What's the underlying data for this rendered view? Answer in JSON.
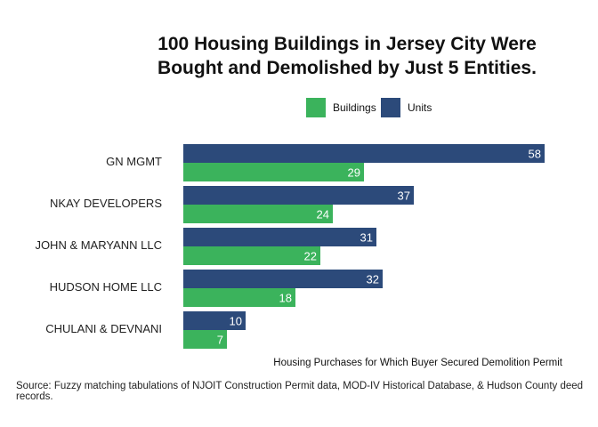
{
  "chart_data": {
    "type": "bar",
    "orientation": "horizontal",
    "title": [
      "100 Housing Buildings in Jersey City Were",
      "Bought and Demolished by Just 5 Entities."
    ],
    "categories": [
      "GN MGMT",
      "NKAY DEVELOPERS",
      "JOHN & MARYANN LLC",
      "HUDSON HOME LLC",
      "CHULANI & DEVNANI"
    ],
    "series": [
      {
        "name": "Units",
        "color": "#2c4a7a",
        "values": [
          58,
          37,
          31,
          32,
          10
        ]
      },
      {
        "name": "Buildings",
        "color": "#3bb35c",
        "values": [
          29,
          24,
          22,
          18,
          7
        ]
      }
    ],
    "legend": {
      "placement": "top-right",
      "order": [
        "Buildings",
        "Units"
      ]
    },
    "xlim": [
      0,
      58
    ],
    "grid": false,
    "note": "Housing Purchases for Which Buyer Secured Demolition Permit",
    "source": "Source: Fuzzy matching tabulations of NJOIT Construction Permit data, MOD-IV Historical Database, & Hudson County deed records."
  }
}
